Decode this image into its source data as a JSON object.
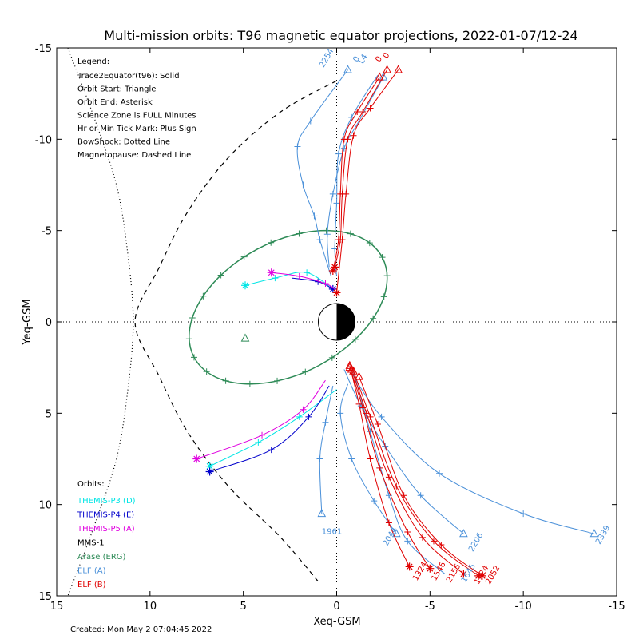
{
  "chart_data": {
    "type": "line",
    "title": "Multi-mission orbits: T96 magnetic equator projections, 2022-01-07/12-24",
    "xlabel": "Xeq-GSM",
    "ylabel": "Yeq-GSM",
    "xlim": [
      15,
      -15
    ],
    "ylim": [
      -15,
      15
    ],
    "x_ticks": [
      15,
      10,
      5,
      0,
      -5,
      -10,
      -15
    ],
    "y_ticks": [
      -15,
      -10,
      -5,
      0,
      5,
      10,
      15
    ],
    "grid": false,
    "legend_header": "Legend:",
    "legend_lines": [
      "Trace2Equator(t96): Solid",
      "Orbit Start: Triangle",
      "Orbit End: Asterisk",
      "Science Zone is FULL Minutes",
      "Hr or Min Tick Mark: Plus Sign",
      "BowShock: Dotted Line",
      "Magnetopause: Dashed Line"
    ],
    "orbits_header": "Orbits:",
    "orbits": [
      {
        "name": "THEMIS-P3 (D)",
        "color": "#00e5e5"
      },
      {
        "name": "THEMIS-P4 (E)",
        "color": "#0000cc"
      },
      {
        "name": "THEMIS-P5 (A)",
        "color": "#e000e0"
      },
      {
        "name": "MMS-1",
        "color": "#000000"
      },
      {
        "name": "Arase (ERG)",
        "color": "#2e8b57"
      },
      {
        "name": "ELF (A)",
        "color": "#4a90d9"
      },
      {
        "name": "ELF (B)",
        "color": "#e00000"
      }
    ],
    "created": "Created: Mon May  2 07:04:45 2022",
    "bowshock": [
      [
        14.4,
        -15
      ],
      [
        13,
        -11.2
      ],
      [
        11.8,
        -7.5
      ],
      [
        11.2,
        -3.8
      ],
      [
        10.9,
        0
      ],
      [
        11.2,
        3.8
      ],
      [
        11.8,
        7.5
      ],
      [
        13,
        11.2
      ],
      [
        14.4,
        15
      ]
    ],
    "magnetopause": [
      [
        0,
        -13.2
      ],
      [
        3,
        -11.5
      ],
      [
        5.8,
        -9
      ],
      [
        8,
        -6
      ],
      [
        9.5,
        -3
      ],
      [
        10.8,
        0
      ],
      [
        9.5,
        3
      ],
      [
        8,
        6
      ],
      [
        5.8,
        9
      ],
      [
        3,
        11.8
      ],
      [
        1,
        14.2
      ]
    ],
    "ellipse_green": {
      "cx": 2.6,
      "cy": -0.8,
      "rx": 5.7,
      "ry": 3.6,
      "rot": -28
    },
    "segments": [
      {
        "series": "THEMIS-P3 (D)",
        "color": "#00e5e5",
        "pts": [
          [
            4.9,
            -2
          ],
          [
            3.3,
            -2.4
          ],
          [
            1.6,
            -2.7
          ],
          [
            0.1,
            -1.7
          ]
        ],
        "start": "asterisk",
        "end": null
      },
      {
        "series": "THEMIS-P3 (D)",
        "color": "#00e5e5",
        "pts": [
          [
            0,
            3.7
          ],
          [
            2,
            5.2
          ],
          [
            4.2,
            6.6
          ],
          [
            6.8,
            7.9
          ]
        ],
        "start": null,
        "end": "asterisk"
      },
      {
        "series": "THEMIS-P4 (E)",
        "color": "#0000cc",
        "pts": [
          [
            2.4,
            -2.4
          ],
          [
            1,
            -2.2
          ],
          [
            0.2,
            -1.8
          ]
        ],
        "start": null,
        "end": "asterisk"
      },
      {
        "series": "THEMIS-P4 (E)",
        "color": "#0000cc",
        "pts": [
          [
            0.4,
            3.5
          ],
          [
            1.5,
            5.2
          ],
          [
            3.5,
            7
          ],
          [
            6.8,
            8.2
          ]
        ],
        "start": null,
        "end": "asterisk"
      },
      {
        "series": "THEMIS-P5 (A)",
        "color": "#e000e0",
        "pts": [
          [
            3.5,
            -2.7
          ],
          [
            2,
            -2.5
          ],
          [
            0.6,
            -2.1
          ],
          [
            0.1,
            -1.8
          ]
        ],
        "start": "asterisk",
        "end": null
      },
      {
        "series": "THEMIS-P5 (A)",
        "color": "#e000e0",
        "pts": [
          [
            0.6,
            3.2
          ],
          [
            1.8,
            4.8
          ],
          [
            4,
            6.2
          ],
          [
            7.5,
            7.5
          ]
        ],
        "start": null,
        "end": "asterisk"
      },
      {
        "series": "ELF (A)",
        "color": "#4a90d9",
        "pts": [
          [
            -0.6,
            -13.8
          ],
          [
            1.4,
            -11
          ],
          [
            2.1,
            -9.6
          ],
          [
            1.8,
            -7.5
          ],
          [
            1.2,
            -5.8
          ],
          [
            0.9,
            -4.5
          ],
          [
            0.3,
            -2.5
          ]
        ],
        "start": "triangle",
        "end": null
      },
      {
        "series": "ELF (A)",
        "color": "#4a90d9",
        "pts": [
          [
            -2.5,
            -13.4
          ],
          [
            -1.2,
            -11
          ],
          [
            -0.4,
            -9.5
          ],
          [
            0.2,
            -7
          ],
          [
            0.5,
            -4.8
          ],
          [
            0.4,
            -3
          ]
        ],
        "start": "triangle",
        "end": null
      },
      {
        "series": "ELF (A)",
        "color": "#4a90d9",
        "pts": [
          [
            -2.2,
            -13.5
          ],
          [
            -0.8,
            -11.2
          ],
          [
            -0.1,
            -9.2
          ],
          [
            0,
            -6.5
          ],
          [
            0.1,
            -4
          ],
          [
            0,
            -2.5
          ]
        ],
        "start": null,
        "end": null
      },
      {
        "series": "ELF (A)",
        "color": "#4a90d9",
        "pts": [
          [
            0.2,
            3.5
          ],
          [
            0.6,
            5.5
          ],
          [
            0.9,
            7.5
          ],
          [
            0.8,
            10.5
          ]
        ],
        "start": null,
        "end": "triangle"
      },
      {
        "series": "ELF (A)",
        "color": "#4a90d9",
        "pts": [
          [
            -0.6,
            3.4
          ],
          [
            -0.2,
            5
          ],
          [
            -0.8,
            7.5
          ],
          [
            -2,
            9.8
          ],
          [
            -3.2,
            11.6
          ]
        ],
        "start": null,
        "end": "triangle"
      },
      {
        "series": "ELF (A)",
        "color": "#4a90d9",
        "pts": [
          [
            -0.4,
            2.6
          ],
          [
            -1.3,
            4.6
          ],
          [
            -2.6,
            6.8
          ],
          [
            -4.5,
            9.5
          ],
          [
            -6.8,
            11.6
          ]
        ],
        "start": null,
        "end": "triangle"
      },
      {
        "series": "ELF (A)",
        "color": "#4a90d9",
        "pts": [
          [
            -0.8,
            2.8
          ],
          [
            -2.4,
            5.2
          ],
          [
            -5.5,
            8.3
          ],
          [
            -10,
            10.5
          ],
          [
            -13.8,
            11.6
          ]
        ],
        "start": null,
        "end": "triangle"
      },
      {
        "series": "ELF (A)",
        "color": "#4a90d9",
        "pts": [
          [
            -0.9,
            2.7
          ],
          [
            -1.8,
            6
          ],
          [
            -2.8,
            9.5
          ],
          [
            -3.8,
            12
          ],
          [
            -5.8,
            13.8
          ]
        ],
        "start": null,
        "end": null
      },
      {
        "series": "ELF (B)",
        "color": "#e00000",
        "pts": [
          [
            -2.3,
            -13.4
          ],
          [
            -1.1,
            -11.5
          ],
          [
            -0.4,
            -10
          ],
          [
            -0.2,
            -7
          ],
          [
            -0.1,
            -4.5
          ],
          [
            0.2,
            -2.8
          ]
        ],
        "start": "triangle",
        "end": "asterisk"
      },
      {
        "series": "ELF (B)",
        "color": "#e00000",
        "pts": [
          [
            -2.7,
            -13.8
          ],
          [
            -1.4,
            -11.5
          ],
          [
            -0.6,
            -10
          ],
          [
            -0.3,
            -7
          ],
          [
            -0.2,
            -4.5
          ],
          [
            0.1,
            -3
          ]
        ],
        "start": "triangle",
        "end": "asterisk"
      },
      {
        "series": "ELF (B)",
        "color": "#e00000",
        "pts": [
          [
            -3.3,
            -13.8
          ],
          [
            -1.8,
            -11.7
          ],
          [
            -0.9,
            -10.2
          ],
          [
            -0.5,
            -7
          ],
          [
            -0.3,
            -4.5
          ],
          [
            0,
            -1.6
          ]
        ],
        "start": "triangle",
        "end": "asterisk"
      },
      {
        "series": "ELF (B)",
        "color": "#e00000",
        "pts": [
          [
            -0.7,
            2.4
          ],
          [
            -1.2,
            4.5
          ],
          [
            -1.8,
            7.5
          ],
          [
            -2.8,
            11
          ],
          [
            -3.9,
            13.4
          ]
        ],
        "start": "triangle",
        "end": "asterisk"
      },
      {
        "series": "ELF (B)",
        "color": "#e00000",
        "pts": [
          [
            -0.7,
            2.5
          ],
          [
            -1.4,
            4.7
          ],
          [
            -2.3,
            8
          ],
          [
            -3.8,
            11.5
          ],
          [
            -5,
            13.5
          ]
        ],
        "start": "triangle",
        "end": "asterisk"
      },
      {
        "series": "ELF (B)",
        "color": "#e00000",
        "pts": [
          [
            -0.8,
            2.6
          ],
          [
            -1.6,
            5
          ],
          [
            -2.8,
            8.5
          ],
          [
            -4.6,
            11.8
          ],
          [
            -6.8,
            13.8
          ]
        ],
        "start": "triangle",
        "end": "asterisk"
      },
      {
        "series": "ELF (B)",
        "color": "#e00000",
        "pts": [
          [
            -0.9,
            2.7
          ],
          [
            -1.8,
            5.2
          ],
          [
            -3.2,
            9
          ],
          [
            -5.2,
            12
          ],
          [
            -7.6,
            13.9
          ]
        ],
        "start": "triangle",
        "end": "asterisk"
      },
      {
        "series": "ELF (B)",
        "color": "#e00000",
        "pts": [
          [
            -1.2,
            3
          ],
          [
            -2.2,
            5.6
          ],
          [
            -3.6,
            9.5
          ],
          [
            -5.6,
            12.2
          ],
          [
            -7.8,
            13.9
          ]
        ],
        "start": "triangle",
        "end": "asterisk"
      }
    ],
    "orbit_labels": [
      {
        "text": "2254",
        "x": 0.7,
        "y": -13.9,
        "color": "#4a90d9",
        "rot": -60
      },
      {
        "text": "0",
        "x": -1.1,
        "y": -14.2,
        "color": "#4a90d9",
        "rot": -60
      },
      {
        "text": "L4",
        "x": -1.4,
        "y": -14.1,
        "color": "#4a90d9",
        "rot": -60
      },
      {
        "text": "0",
        "x": -2.3,
        "y": -14.2,
        "color": "#e00000",
        "rot": -60
      },
      {
        "text": "0",
        "x": -2.7,
        "y": -14.4,
        "color": "#e00000",
        "rot": -60
      },
      {
        "text": "1961",
        "x": 0.8,
        "y": 11.6,
        "color": "#4a90d9",
        "rot": 0
      },
      {
        "text": "2044",
        "x": -2.7,
        "y": 12.3,
        "color": "#4a90d9",
        "rot": -60
      },
      {
        "text": "2206",
        "x": -7.3,
        "y": 12.6,
        "color": "#4a90d9",
        "rot": -60
      },
      {
        "text": "2339",
        "x": -14.1,
        "y": 12.2,
        "color": "#4a90d9",
        "rot": -60
      },
      {
        "text": "1324",
        "x": -4.3,
        "y": 14.2,
        "color": "#e00000",
        "rot": -60
      },
      {
        "text": "1546",
        "x": -5.3,
        "y": 14.2,
        "color": "#e00000",
        "rot": -60
      },
      {
        "text": "2155",
        "x": -6.1,
        "y": 14.3,
        "color": "#e00000",
        "rot": -60
      },
      {
        "text": "1645",
        "x": -6.9,
        "y": 14.3,
        "color": "#4a90d9",
        "rot": -60
      },
      {
        "text": "1924",
        "x": -7.6,
        "y": 14.4,
        "color": "#e00000",
        "rot": -60
      },
      {
        "text": "2052",
        "x": -8.2,
        "y": 14.4,
        "color": "#e00000",
        "rot": -60
      }
    ]
  }
}
